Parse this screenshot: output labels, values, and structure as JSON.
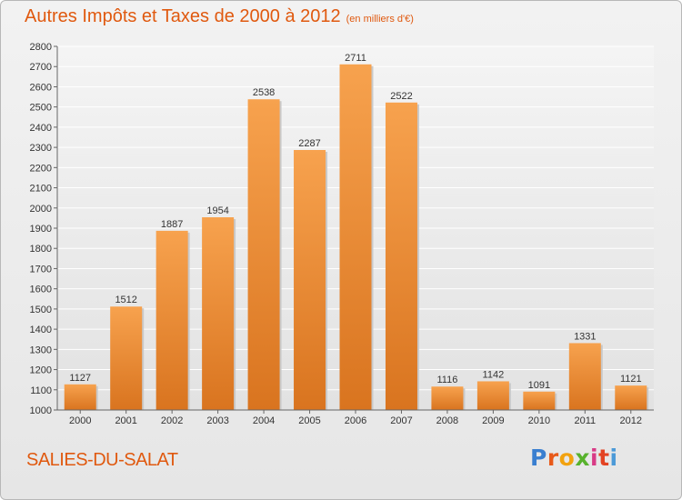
{
  "chart_data": {
    "type": "bar",
    "title": "Autres Impôts et Taxes de 2000 à 2012",
    "subtitle": "(en milliers d'€)",
    "categories": [
      "2000",
      "2001",
      "2002",
      "2003",
      "2004",
      "2005",
      "2006",
      "2007",
      "2008",
      "2009",
      "2010",
      "2011",
      "2012"
    ],
    "values": [
      1127,
      1512,
      1887,
      1954,
      2538,
      2287,
      2711,
      2522,
      1116,
      1142,
      1091,
      1331,
      1121
    ],
    "ylim": [
      1000,
      2800
    ],
    "yticks": [
      1000,
      1100,
      1200,
      1300,
      1400,
      1500,
      1600,
      1700,
      1800,
      1900,
      2000,
      2100,
      2200,
      2300,
      2400,
      2500,
      2600,
      2700,
      2800
    ],
    "grid": true,
    "bar_color_top": "#f7a24e",
    "bar_color_bottom": "#d9741f",
    "text_color": "#e0590f"
  },
  "footer": {
    "commune": "SALIES-DU-SALAT",
    "logo_letters": [
      "P",
      "r",
      "o",
      "x",
      "i",
      "t",
      "i"
    ]
  }
}
